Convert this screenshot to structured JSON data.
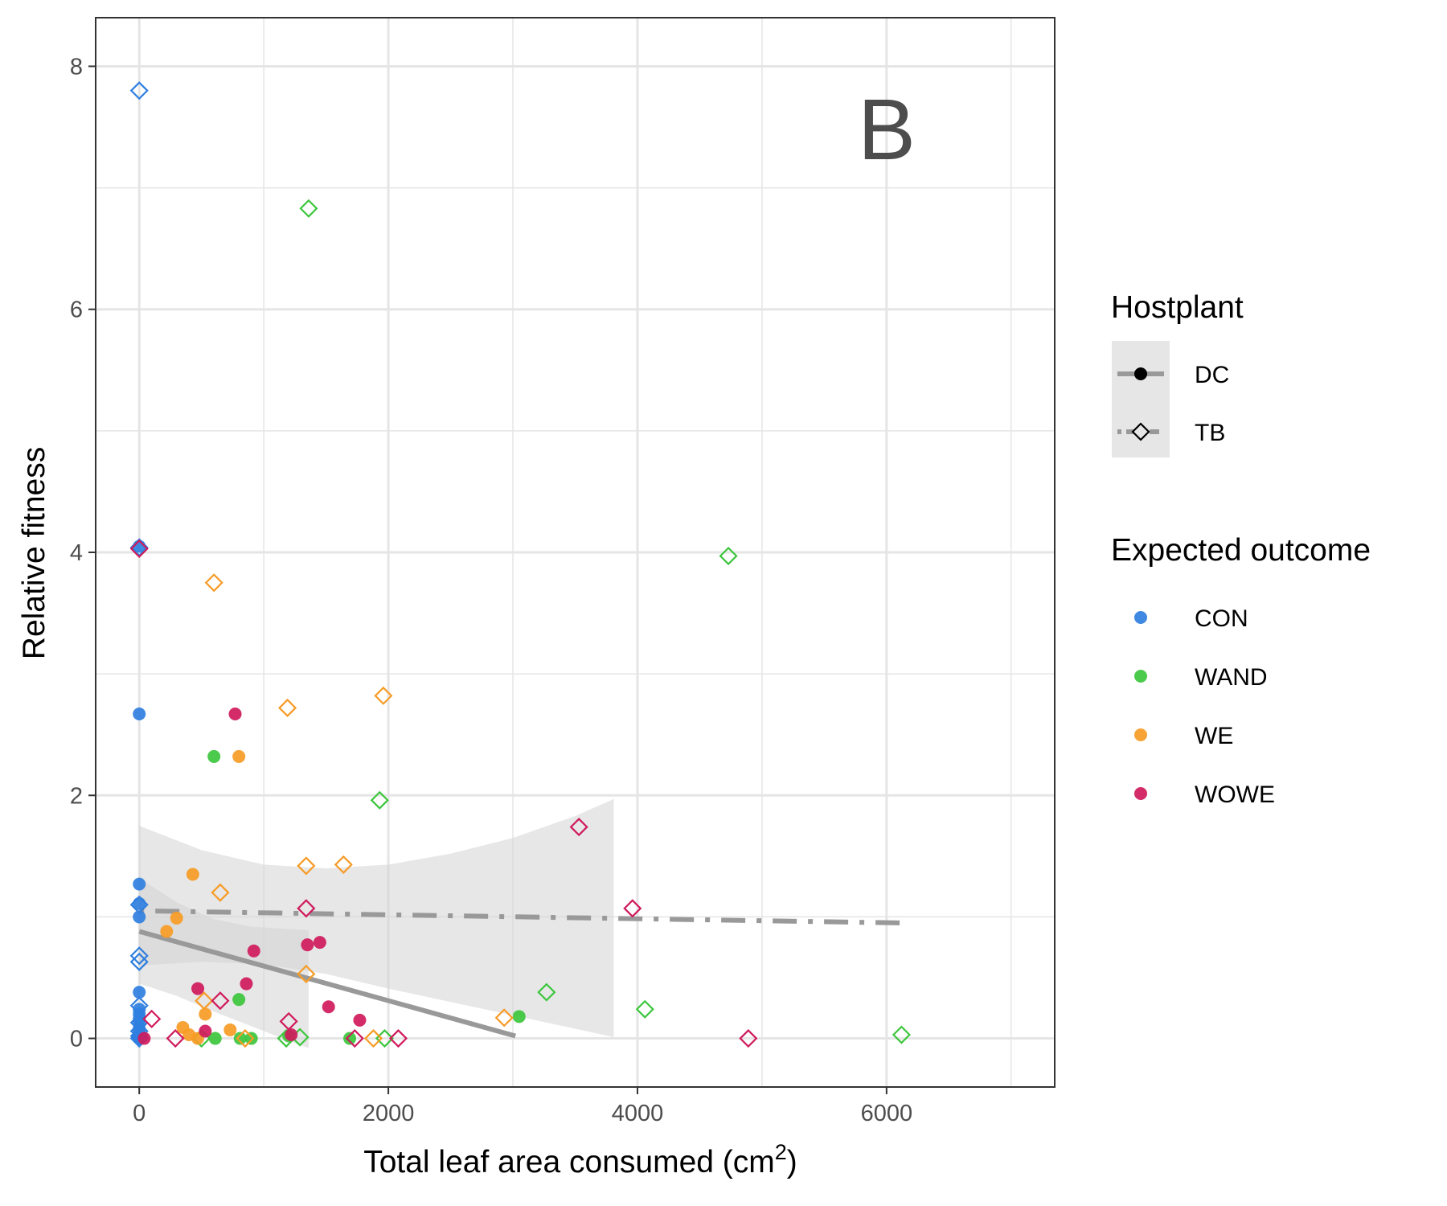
{
  "chart_data": {
    "type": "scatter",
    "panel_label": "B",
    "xlabel": "Total leaf area consumed (cm2)",
    "xlabel_main": "Total leaf area consumed (cm",
    "xlabel_sup": "2",
    "xlabel_close": ")",
    "ylabel": "Relative fitness",
    "xlim": [
      -350,
      7350
    ],
    "ylim": [
      -0.4,
      8.4
    ],
    "x_ticks": [
      0,
      2000,
      4000,
      6000
    ],
    "x_tick_labels": [
      "0",
      "2000",
      "4000",
      "6000"
    ],
    "y_ticks": [
      0,
      2,
      4,
      6,
      8
    ],
    "y_tick_labels": [
      "0",
      "2",
      "4",
      "6",
      "8"
    ],
    "x_minor_ticks": [
      1000,
      3000,
      5000,
      7000
    ],
    "y_minor_ticks": [
      1,
      3,
      5,
      7
    ],
    "grid": true,
    "colors": {
      "CON": "#2f7fe0",
      "WAND": "#3cc63c",
      "WE": "#f79b25",
      "WOWE": "#cf1a5c",
      "fit_line": "#999999",
      "ribbon": "#d4d4d4",
      "panel_border": "#333333",
      "grid": "#e5e5e5"
    },
    "legend_hostplant": {
      "title": "Hostplant",
      "entries": [
        {
          "label": "DC",
          "shape": "circle",
          "linetype": "solid"
        },
        {
          "label": "TB",
          "shape": "diamond",
          "linetype": "dotdash"
        }
      ]
    },
    "legend_outcome": {
      "title": "Expected outcome",
      "entries": [
        {
          "label": "CON",
          "color": "#2f7fe0"
        },
        {
          "label": "WAND",
          "color": "#3cc63c"
        },
        {
          "label": "WE",
          "color": "#f79b25"
        },
        {
          "label": "WOWE",
          "color": "#cf1a5c"
        }
      ]
    },
    "fit_lines": [
      {
        "hostplant": "DC",
        "linetype": "solid",
        "x": [
          0,
          3020
        ],
        "y": [
          0.88,
          0.02
        ]
      },
      {
        "hostplant": "TB",
        "linetype": "dotdash",
        "x": [
          0,
          6130
        ],
        "y": [
          1.05,
          0.95
        ]
      }
    ],
    "confidence_bands": [
      {
        "hostplant": "DC",
        "x": [
          0,
          300,
          600,
          900,
          1200,
          1360
        ],
        "upper": [
          1.32,
          1.12,
          0.98,
          0.92,
          0.9,
          0.89
        ],
        "lower": [
          0.45,
          0.35,
          0.22,
          0.1,
          -0.02,
          -0.08
        ]
      },
      {
        "hostplant": "TB",
        "x": [
          0,
          500,
          1000,
          1500,
          2000,
          2500,
          3000,
          3500,
          3810
        ],
        "upper": [
          1.75,
          1.55,
          1.43,
          1.4,
          1.43,
          1.52,
          1.65,
          1.83,
          1.97
        ],
        "lower": [
          0.6,
          0.63,
          0.61,
          0.53,
          0.41,
          0.3,
          0.19,
          0.08,
          0.01
        ]
      }
    ],
    "series": [
      {
        "name": "CON",
        "hostplant": "DC",
        "x": [
          0,
          0,
          0,
          0,
          0,
          0,
          0,
          0,
          0,
          0,
          0,
          0,
          0,
          0,
          0,
          0
        ],
        "y": [
          4.05,
          2.67,
          1.27,
          1.11,
          1.0,
          0.38,
          0.24,
          0.2,
          0.16,
          0.12,
          0.08,
          0.05,
          0.03,
          0.02,
          0.01,
          0.0
        ]
      },
      {
        "name": "CON",
        "hostplant": "TB",
        "x": [
          0,
          0,
          0,
          0,
          0,
          0,
          0,
          0,
          0,
          0
        ],
        "y": [
          7.8,
          4.04,
          1.1,
          0.68,
          0.63,
          0.27,
          0.13,
          0.06,
          0.02,
          0.0
        ]
      },
      {
        "name": "WAND",
        "hostplant": "DC",
        "x": [
          600,
          800,
          610,
          810,
          900,
          1200,
          1690,
          3050
        ],
        "y": [
          2.32,
          0.32,
          0.0,
          0.0,
          0.0,
          0.02,
          0.0,
          0.18
        ]
      },
      {
        "name": "WAND",
        "hostplant": "TB",
        "x": [
          1360,
          4730,
          1930,
          3270,
          4060,
          6120,
          500,
          1180,
          1290,
          1970
        ],
        "y": [
          6.83,
          3.97,
          1.96,
          0.38,
          0.24,
          0.03,
          0.0,
          0.0,
          0.01,
          0.0
        ]
      },
      {
        "name": "WE",
        "hostplant": "DC",
        "x": [
          800,
          430,
          300,
          220,
          530,
          350,
          730,
          400,
          470
        ],
        "y": [
          2.32,
          1.35,
          0.99,
          0.88,
          0.2,
          0.09,
          0.07,
          0.03,
          0.0
        ]
      },
      {
        "name": "WE",
        "hostplant": "TB",
        "x": [
          600,
          1190,
          1960,
          1340,
          1640,
          650,
          1340,
          2930,
          520,
          850,
          1880
        ],
        "y": [
          3.75,
          2.72,
          2.82,
          1.42,
          1.43,
          1.2,
          0.53,
          0.17,
          0.31,
          0.0,
          0.0
        ]
      },
      {
        "name": "WOWE",
        "hostplant": "DC",
        "x": [
          770,
          920,
          1350,
          1450,
          860,
          470,
          1520,
          1770,
          530,
          1220,
          40
        ],
        "y": [
          2.67,
          0.72,
          0.77,
          0.79,
          0.45,
          0.41,
          0.26,
          0.15,
          0.06,
          0.03,
          0.0
        ]
      },
      {
        "name": "WOWE",
        "hostplant": "TB",
        "x": [
          0,
          3530,
          3960,
          1340,
          650,
          100,
          1200,
          290,
          4890,
          1730,
          2080
        ],
        "y": [
          4.03,
          1.74,
          1.07,
          1.07,
          0.31,
          0.16,
          0.14,
          0.0,
          0.0,
          0.0,
          0.0
        ]
      }
    ]
  }
}
